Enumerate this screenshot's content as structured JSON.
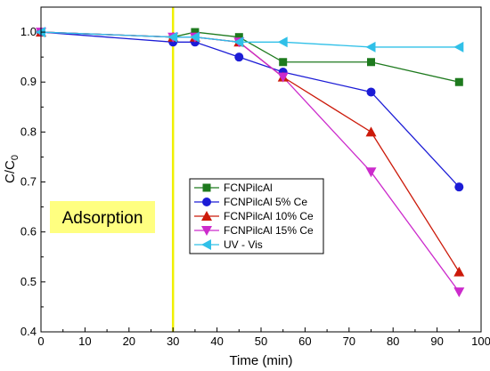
{
  "chart_data": {
    "type": "line",
    "xlabel": "Time (min)",
    "ylabel_main": "C/C",
    "ylabel_sub": "0",
    "xlim": [
      0,
      100
    ],
    "ylim": [
      0.4,
      1.05
    ],
    "xticks": [
      0,
      10,
      20,
      30,
      40,
      50,
      60,
      70,
      80,
      90,
      100
    ],
    "yticks": [
      0.4,
      0.5,
      0.6,
      0.7,
      0.8,
      0.9,
      1.0
    ],
    "ytick_labels": [
      "0.4",
      "0.5",
      "0.6",
      "0.7",
      "0.8",
      "0.9",
      "1.0"
    ],
    "grid": false,
    "legend_position": "center-left",
    "vertical_line": {
      "x": 30,
      "color": "#f0f000"
    },
    "annotation": {
      "text": "Adsorption",
      "x": 10,
      "y": 0.625,
      "background": "#ffff80"
    },
    "series": [
      {
        "name": "FCNPilcAl",
        "color": "#1e7a1e",
        "marker": "square",
        "x": [
          0,
          30,
          35,
          45,
          55,
          75,
          95
        ],
        "y": [
          1.0,
          0.99,
          1.0,
          0.99,
          0.94,
          0.94,
          0.9
        ]
      },
      {
        "name": "FCNPilcAl 5% Ce",
        "color": "#1c1cd6",
        "marker": "circle",
        "x": [
          0,
          30,
          35,
          45,
          55,
          75,
          95
        ],
        "y": [
          1.0,
          0.98,
          0.98,
          0.95,
          0.92,
          0.88,
          0.69
        ]
      },
      {
        "name": "FCNPilcAl 10% Ce",
        "color": "#cc1a0a",
        "marker": "triangle-up",
        "x": [
          0,
          30,
          35,
          45,
          55,
          75,
          95
        ],
        "y": [
          1.0,
          0.99,
          0.99,
          0.98,
          0.91,
          0.8,
          0.52
        ]
      },
      {
        "name": "FCNPilcAl 15% Ce",
        "color": "#cc2bcc",
        "marker": "triangle-down",
        "x": [
          0,
          30,
          35,
          45,
          55,
          75,
          95
        ],
        "y": [
          1.0,
          0.99,
          0.99,
          0.98,
          0.91,
          0.72,
          0.48
        ]
      },
      {
        "name": "UV - Vis",
        "color": "#30c0e8",
        "marker": "triangle-left",
        "x": [
          0,
          30,
          35,
          45,
          55,
          75,
          95
        ],
        "y": [
          1.0,
          0.99,
          0.99,
          0.98,
          0.98,
          0.97,
          0.97
        ]
      }
    ]
  }
}
